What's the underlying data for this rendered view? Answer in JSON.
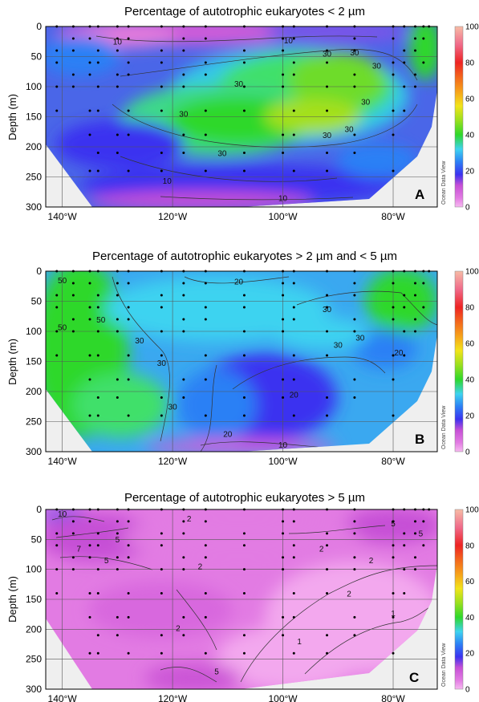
{
  "chart_data": [
    {
      "type": "heatmap",
      "panel_label": "A",
      "title": "Percentage of autotrophic eukaryotes < 2 µm",
      "ylabel": "Depth (m)",
      "xlabel": "",
      "x_ticks": [
        "140°W",
        "120°W",
        "100°W",
        "80°W"
      ],
      "x_tick_values": [
        -140,
        -120,
        -100,
        -80
      ],
      "y_ticks": [
        "0",
        "50",
        "100",
        "150",
        "200",
        "250",
        "300"
      ],
      "xlim": [
        -143,
        -72
      ],
      "ylim": [
        300,
        0
      ],
      "colorbar": {
        "min": 0,
        "max": 100,
        "ticks": [
          "100",
          "80",
          "60",
          "40",
          "20",
          "0"
        ]
      },
      "watermark": "Ocean Data View",
      "contour_levels": [
        "10",
        "30"
      ],
      "dominant_range": "20–45%",
      "grid": true
    },
    {
      "type": "heatmap",
      "panel_label": "B",
      "title": "Percentage of autotrophic eukaryotes > 2 µm and < 5 µm",
      "ylabel": "Depth (m)",
      "xlabel": "",
      "x_ticks": [
        "140°W",
        "120°W",
        "100°W",
        "80°W"
      ],
      "x_tick_values": [
        -140,
        -120,
        -100,
        -80
      ],
      "y_ticks": [
        "0",
        "50",
        "100",
        "150",
        "200",
        "250",
        "300"
      ],
      "xlim": [
        -143,
        -72
      ],
      "ylim": [
        300,
        0
      ],
      "colorbar": {
        "min": 0,
        "max": 100,
        "ticks": [
          "100",
          "80",
          "60",
          "40",
          "20",
          "0"
        ]
      },
      "watermark": "Ocean Data View",
      "contour_levels": [
        "10",
        "20",
        "30",
        "50"
      ],
      "dominant_range": "15–45%",
      "grid": true
    },
    {
      "type": "heatmap",
      "panel_label": "C",
      "title": "Percentage of autotrophic eukaryotes > 5 µm",
      "ylabel": "Depth (m)",
      "xlabel": "",
      "x_ticks": [
        "140°W",
        "120°W",
        "100°W",
        "80°W"
      ],
      "x_tick_values": [
        -140,
        -120,
        -100,
        -80
      ],
      "y_ticks": [
        "0",
        "50",
        "100",
        "150",
        "200",
        "250",
        "300"
      ],
      "xlim": [
        -143,
        -72
      ],
      "ylim": [
        300,
        0
      ],
      "colorbar": {
        "min": 0,
        "max": 100,
        "ticks": [
          "100",
          "80",
          "60",
          "40",
          "20",
          "0"
        ]
      },
      "watermark": "Ocean Data View",
      "contour_levels": [
        "1",
        "2",
        "5",
        "7",
        "10"
      ],
      "dominant_range": "0–10%",
      "grid": true
    }
  ],
  "colors": {
    "mask": "#efefef",
    "grid": "#555555",
    "colorbar_stops": [
      "#f7b8f0",
      "#e27be3",
      "#c64fd6",
      "#7a55e8",
      "#3b32f0",
      "#2c80f5",
      "#3ed3f0",
      "#3fe06a",
      "#2ed82a",
      "#9ae01e",
      "#f2e41a",
      "#f7a21a",
      "#f3661c",
      "#ee2323",
      "#f06a8a",
      "#f7bca6"
    ]
  }
}
